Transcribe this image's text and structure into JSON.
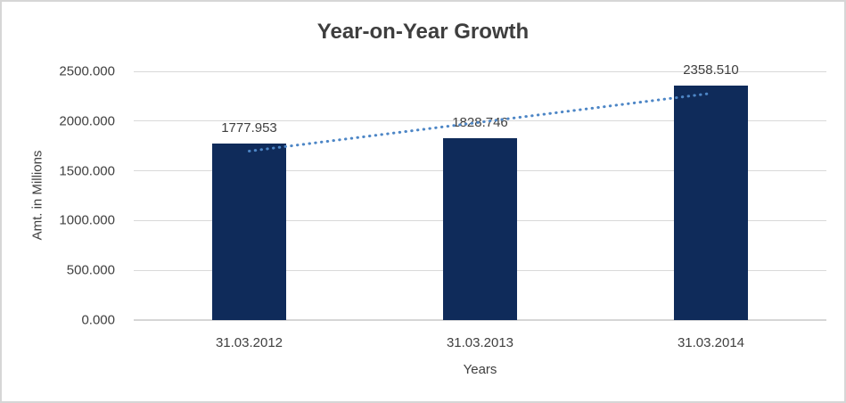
{
  "chart_data": {
    "type": "bar",
    "title": "Year-on-Year Growth",
    "categories": [
      "31.03.2012",
      "31.03.2013",
      "31.03.2014"
    ],
    "values": [
      1777.953,
      1828.746,
      2358.51
    ],
    "value_labels": [
      "1777.953",
      "1828.746",
      "2358.510"
    ],
    "xlabel": "Years",
    "ylabel": "Amt. in Millions",
    "ylim": [
      0,
      2500
    ],
    "ytick_step": 500,
    "ytick_labels": [
      "0.000",
      "500.000",
      "1000.000",
      "1500.000",
      "2000.000",
      "2500.000"
    ],
    "grid": true,
    "legend": "none",
    "bar_color": "#0f2b5a",
    "trendline": {
      "type": "linear",
      "style": "dotted",
      "color": "#4d86c6"
    },
    "gridline_color": "#d9d9d9",
    "axisline_color": "#d6d6d6",
    "text_color": "#404040",
    "title_color": "#3e3e3e"
  }
}
